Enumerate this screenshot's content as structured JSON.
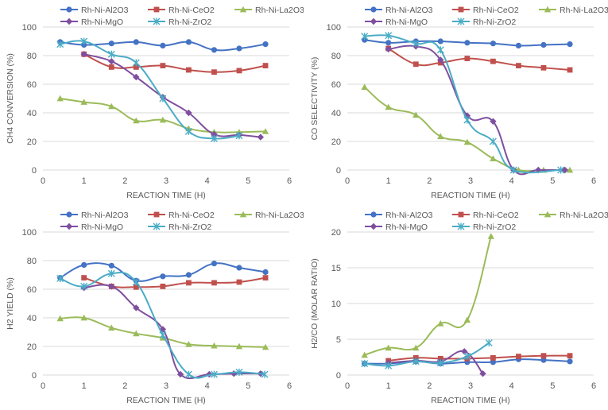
{
  "colors": {
    "Rh-Ni-Al2O3": "#4472C4",
    "Rh-Ni-CeO2": "#C0504D",
    "Rh-Ni-La2O3": "#9BBB59",
    "Rh-Ni-MgO": "#7F4F9F",
    "Rh-Ni-ZrO2": "#4BACC6"
  },
  "chart_data": [
    {
      "type": "line",
      "id": "ch4",
      "xlabel": "REACTION TIME (H)",
      "ylabel": "CH4 CONVERSION (%)",
      "xlim": [
        0,
        6
      ],
      "ylim": [
        0,
        100
      ],
      "xticks": [
        "0",
        "1",
        "2",
        "3",
        "4",
        "5",
        "6"
      ],
      "yticks": [
        "0",
        "20",
        "40",
        "60",
        "80",
        "100"
      ],
      "legend": [
        "Rh-Ni-Al2O3",
        "Rh-Ni-CeO2",
        "Rh-Ni-La2O3",
        "Rh-Ni-MgO",
        "Rh-Ni-ZrO2"
      ],
      "series": [
        {
          "name": "Rh-Ni-Al2O3",
          "marker": "circle",
          "x": [
            0.42,
            1.0,
            1.67,
            2.27,
            2.92,
            3.55,
            4.17,
            4.78,
            5.42
          ],
          "y": [
            89.5,
            87.5,
            88.5,
            89.5,
            87,
            89.5,
            84,
            85,
            88
          ]
        },
        {
          "name": "Rh-Ni-CeO2",
          "marker": "square",
          "x": [
            1.0,
            1.67,
            2.27,
            2.92,
            3.55,
            4.17,
            4.78,
            5.42
          ],
          "y": [
            81,
            72,
            72,
            73,
            70,
            68.5,
            69.5,
            73
          ]
        },
        {
          "name": "Rh-Ni-La2O3",
          "marker": "triangle",
          "x": [
            0.42,
            1.0,
            1.67,
            2.27,
            2.92,
            3.55,
            4.17,
            4.78,
            5.42
          ],
          "y": [
            50,
            47.5,
            44.5,
            34.5,
            35,
            29,
            26.5,
            26.5,
            27
          ]
        },
        {
          "name": "Rh-Ni-MgO",
          "marker": "diamond",
          "x": [
            1.0,
            1.67,
            2.27,
            2.92,
            3.55,
            4.17,
            4.78,
            5.3
          ],
          "y": [
            81,
            76,
            65,
            51,
            40,
            25,
            24.5,
            23
          ]
        },
        {
          "name": "Rh-Ni-ZrO2",
          "marker": "star",
          "x": [
            0.42,
            1.0,
            1.67,
            2.27,
            2.92,
            3.55,
            4.17,
            4.78
          ],
          "y": [
            88,
            90,
            81,
            75,
            50,
            27,
            22,
            24
          ]
        }
      ]
    },
    {
      "type": "line",
      "id": "co",
      "xlabel": "REACTION TIME (H)",
      "ylabel": "CO SELECTIVITY (%)",
      "xlim": [
        0,
        6
      ],
      "ylim": [
        0,
        100
      ],
      "xticks": [
        "0",
        "1",
        "2",
        "3",
        "4",
        "5",
        "6"
      ],
      "yticks": [
        "0",
        "20",
        "40",
        "60",
        "80",
        "100"
      ],
      "legend": [
        "Rh-Ni-Al2O3",
        "Rh-Ni-CeO2",
        "Rh-Ni-La2O3",
        "Rh-Ni-MgO",
        "Rh-Ni-ZrO2"
      ],
      "series": [
        {
          "name": "Rh-Ni-Al2O3",
          "marker": "circle",
          "x": [
            0.42,
            1.0,
            1.67,
            2.27,
            2.92,
            3.55,
            4.17,
            4.78,
            5.42
          ],
          "y": [
            91,
            89,
            90,
            90,
            89,
            88.5,
            87,
            87.5,
            88
          ]
        },
        {
          "name": "Rh-Ni-CeO2",
          "marker": "square",
          "x": [
            1.0,
            1.67,
            2.27,
            2.92,
            3.55,
            4.17,
            4.78,
            5.42
          ],
          "y": [
            85,
            74,
            75,
            78,
            76,
            73,
            71.5,
            70
          ]
        },
        {
          "name": "Rh-Ni-La2O3",
          "marker": "triangle",
          "x": [
            0.42,
            1.0,
            1.67,
            2.27,
            2.92,
            3.55,
            4.17,
            4.78,
            5.42
          ],
          "y": [
            58,
            44,
            38.5,
            23.5,
            19.5,
            8,
            0,
            0,
            0
          ]
        },
        {
          "name": "Rh-Ni-MgO",
          "marker": "diamond",
          "x": [
            1.0,
            1.67,
            2.27,
            2.92,
            3.55,
            4.05,
            4.65,
            5.3
          ],
          "y": [
            84.5,
            86.5,
            77,
            38,
            34,
            0,
            0,
            0
          ]
        },
        {
          "name": "Rh-Ni-ZrO2",
          "marker": "star",
          "x": [
            0.42,
            1.0,
            1.67,
            2.27,
            2.92,
            3.55,
            4.05,
            5.2
          ],
          "y": [
            93.5,
            94,
            88.5,
            84,
            35,
            20,
            0,
            0
          ]
        }
      ]
    },
    {
      "type": "line",
      "id": "h2yield",
      "xlabel": "REACTION TIME (H)",
      "ylabel": "H2 YIELD (%)",
      "xlim": [
        0,
        6
      ],
      "ylim": [
        0,
        100
      ],
      "xticks": [
        "0",
        "1",
        "2",
        "3",
        "4",
        "5",
        "6"
      ],
      "yticks": [
        "0",
        "20",
        "40",
        "60",
        "80",
        "100"
      ],
      "legend": [
        "Rh-Ni-Al2O3",
        "Rh-Ni-CeO2",
        "Rh-Ni-La2O3",
        "Rh-Ni-MgO",
        "Rh-Ni-ZrO2"
      ],
      "series": [
        {
          "name": "Rh-Ni-Al2O3",
          "marker": "circle",
          "x": [
            0.42,
            1.0,
            1.67,
            2.27,
            2.92,
            3.55,
            4.17,
            4.78,
            5.42
          ],
          "y": [
            68,
            77,
            76.5,
            66,
            69,
            70,
            78,
            75,
            72
          ]
        },
        {
          "name": "Rh-Ni-CeO2",
          "marker": "square",
          "x": [
            1.0,
            1.67,
            2.27,
            2.92,
            3.55,
            4.17,
            4.78,
            5.42
          ],
          "y": [
            68,
            62,
            61.5,
            62,
            64.5,
            64.5,
            65,
            68
          ]
        },
        {
          "name": "Rh-Ni-La2O3",
          "marker": "triangle",
          "x": [
            0.42,
            1.0,
            1.67,
            2.27,
            2.92,
            3.55,
            4.17,
            4.78,
            5.42
          ],
          "y": [
            39.5,
            40,
            33,
            29,
            26,
            21.5,
            20.5,
            20,
            19.5
          ]
        },
        {
          "name": "Rh-Ni-MgO",
          "marker": "diamond",
          "x": [
            1.0,
            1.67,
            2.27,
            2.92,
            3.35,
            4.05,
            4.65,
            5.3
          ],
          "y": [
            61,
            62,
            47,
            32,
            0.5,
            0.5,
            1,
            1
          ]
        },
        {
          "name": "Rh-Ni-ZrO2",
          "marker": "star",
          "x": [
            0.42,
            1.0,
            1.67,
            2.27,
            2.92,
            3.55,
            4.17,
            4.78,
            5.4
          ],
          "y": [
            67.5,
            62,
            71,
            65,
            28,
            0.5,
            0.5,
            2,
            0.5
          ]
        }
      ]
    },
    {
      "type": "line",
      "id": "h2co",
      "xlabel": "REACTION TIME (H)",
      "ylabel": "H2/CO (MOLAR RATIO)",
      "xlim": [
        0,
        6
      ],
      "ylim": [
        0,
        20
      ],
      "xticks": [
        "0",
        "1",
        "2",
        "3",
        "4",
        "5",
        "6"
      ],
      "yticks": [
        "0",
        "5",
        "10",
        "15",
        "20"
      ],
      "legend": [
        "Rh-Ni-Al2O3",
        "Rh-Ni-CeO2",
        "Rh-Ni-La2O3",
        "Rh-Ni-MgO",
        "Rh-Ni-ZrO2"
      ],
      "series": [
        {
          "name": "Rh-Ni-Al2O3",
          "marker": "circle",
          "x": [
            0.42,
            1.0,
            1.67,
            2.27,
            2.92,
            3.55,
            4.17,
            4.78,
            5.42
          ],
          "y": [
            1.6,
            1.6,
            1.9,
            1.6,
            1.8,
            1.8,
            2.2,
            2.1,
            1.9
          ]
        },
        {
          "name": "Rh-Ni-CeO2",
          "marker": "square",
          "x": [
            1.0,
            1.67,
            2.27,
            2.92,
            3.55,
            4.17,
            4.78,
            5.42
          ],
          "y": [
            2.0,
            2.4,
            2.3,
            2.3,
            2.4,
            2.6,
            2.7,
            2.7
          ]
        },
        {
          "name": "Rh-Ni-La2O3",
          "marker": "triangle",
          "x": [
            0.42,
            1.0,
            1.67,
            2.27,
            2.92,
            3.5
          ],
          "y": [
            2.8,
            3.8,
            3.8,
            7.2,
            7.7,
            19.4
          ]
        },
        {
          "name": "Rh-Ni-MgO",
          "marker": "diamond",
          "x": [
            1.0,
            1.67,
            2.27,
            2.85,
            3.3
          ],
          "y": [
            1.7,
            2.0,
            1.9,
            3.3,
            0.2
          ]
        },
        {
          "name": "Rh-Ni-ZrO2",
          "marker": "star",
          "x": [
            0.42,
            1.0,
            1.67,
            2.27,
            2.92,
            3.45
          ],
          "y": [
            1.6,
            1.3,
            1.9,
            1.7,
            2.6,
            4.5
          ]
        }
      ]
    }
  ]
}
